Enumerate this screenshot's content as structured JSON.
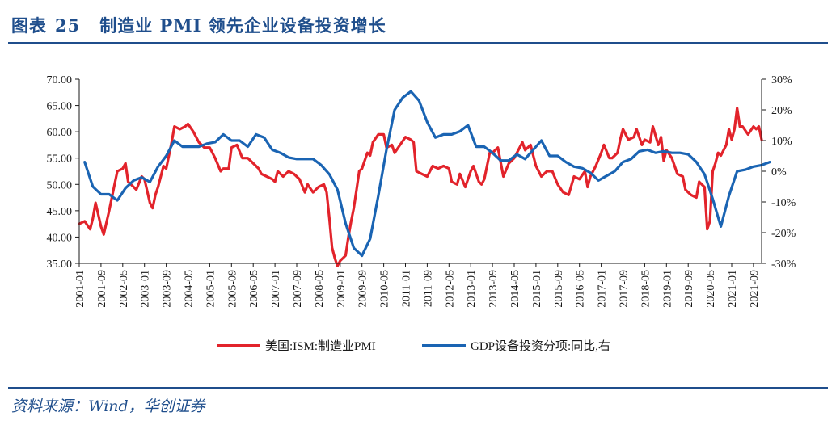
{
  "header": {
    "fig_label": "图表",
    "fig_number": "25",
    "fig_title": "制造业 PMI 领先企业设备投资增长"
  },
  "footer": {
    "source": "资料来源：Wind，华创证券"
  },
  "colors": {
    "pmi": "#e2232b",
    "gdp": "#1a64b3",
    "axis": "#1a1a1a",
    "accent": "#1f4e8c"
  },
  "chart_data": {
    "type": "line",
    "title": "制造业 PMI 领先企业设备投资增长",
    "x_start": "2001-01",
    "x_end": "2021-12",
    "x_tick_labels": [
      "2001-01",
      "2001-09",
      "2002-05",
      "2003-01",
      "2003-09",
      "2004-05",
      "2005-01",
      "2005-09",
      "2006-05",
      "2007-01",
      "2007-09",
      "2008-05",
      "2009-01",
      "2009-09",
      "2010-05",
      "2011-01",
      "2011-09",
      "2012-05",
      "2013-01",
      "2013-09",
      "2014-05",
      "2015-01",
      "2015-09",
      "2016-05",
      "2017-01",
      "2017-09",
      "2018-05",
      "2019-01",
      "2019-09",
      "2020-05",
      "2021-01",
      "2021-09"
    ],
    "y_left": {
      "min": 35,
      "max": 70,
      "step": 5,
      "tick_labels": [
        "35.00",
        "40.00",
        "45.00",
        "50.00",
        "55.00",
        "60.00",
        "65.00",
        "70.00"
      ]
    },
    "y_right": {
      "min": -30,
      "max": 30,
      "step": 10,
      "tick_labels": [
        "-30%",
        "-20%",
        "-10%",
        "0%",
        "10%",
        "20%",
        "30%"
      ]
    },
    "legend_position": "bottom-center",
    "series": [
      {
        "name": "美国:ISM:制造业PMI",
        "axis": "left",
        "points": [
          [
            "2001-01",
            42.5
          ],
          [
            "2001-03",
            43.0
          ],
          [
            "2001-05",
            41.5
          ],
          [
            "2001-06",
            43.5
          ],
          [
            "2001-07",
            46.5
          ],
          [
            "2001-09",
            42.0
          ],
          [
            "2001-10",
            40.5
          ],
          [
            "2001-12",
            45.0
          ],
          [
            "2002-02",
            50.0
          ],
          [
            "2002-03",
            52.5
          ],
          [
            "2002-05",
            53.0
          ],
          [
            "2002-06",
            54.0
          ],
          [
            "2002-07",
            50.5
          ],
          [
            "2002-09",
            49.5
          ],
          [
            "2002-10",
            49.0
          ],
          [
            "2002-12",
            51.5
          ],
          [
            "2003-01",
            51.0
          ],
          [
            "2003-03",
            46.5
          ],
          [
            "2003-04",
            45.5
          ],
          [
            "2003-05",
            48.0
          ],
          [
            "2003-06",
            49.5
          ],
          [
            "2003-08",
            53.5
          ],
          [
            "2003-09",
            53.0
          ],
          [
            "2003-11",
            58.0
          ],
          [
            "2003-12",
            61.0
          ],
          [
            "2004-02",
            60.5
          ],
          [
            "2004-04",
            61.0
          ],
          [
            "2004-05",
            61.5
          ],
          [
            "2004-07",
            60.0
          ],
          [
            "2004-09",
            58.0
          ],
          [
            "2004-11",
            57.0
          ],
          [
            "2005-01",
            57.0
          ],
          [
            "2005-03",
            55.0
          ],
          [
            "2005-05",
            52.5
          ],
          [
            "2005-06",
            53.0
          ],
          [
            "2005-08",
            53.0
          ],
          [
            "2005-09",
            57.0
          ],
          [
            "2005-11",
            57.5
          ],
          [
            "2006-01",
            55.0
          ],
          [
            "2006-03",
            55.0
          ],
          [
            "2006-05",
            54.0
          ],
          [
            "2006-07",
            53.0
          ],
          [
            "2006-08",
            52.0
          ],
          [
            "2006-10",
            51.5
          ],
          [
            "2006-12",
            51.0
          ],
          [
            "2007-01",
            50.5
          ],
          [
            "2007-02",
            52.5
          ],
          [
            "2007-04",
            51.5
          ],
          [
            "2007-06",
            52.5
          ],
          [
            "2007-08",
            52.0
          ],
          [
            "2007-10",
            51.0
          ],
          [
            "2007-12",
            48.5
          ],
          [
            "2008-01",
            50.0
          ],
          [
            "2008-03",
            48.5
          ],
          [
            "2008-05",
            49.5
          ],
          [
            "2008-07",
            50.0
          ],
          [
            "2008-08",
            48.5
          ],
          [
            "2008-09",
            43.5
          ],
          [
            "2008-10",
            38.0
          ],
          [
            "2008-11",
            36.0
          ],
          [
            "2008-12",
            34.5
          ],
          [
            "2009-01",
            35.5
          ],
          [
            "2009-02",
            36.0
          ],
          [
            "2009-03",
            36.5
          ],
          [
            "2009-04",
            40.0
          ],
          [
            "2009-05",
            43.0
          ],
          [
            "2009-06",
            45.5
          ],
          [
            "2009-07",
            49.0
          ],
          [
            "2009-08",
            52.5
          ],
          [
            "2009-09",
            53.0
          ],
          [
            "2009-11",
            56.0
          ],
          [
            "2009-12",
            55.5
          ],
          [
            "2010-01",
            58.0
          ],
          [
            "2010-03",
            59.5
          ],
          [
            "2010-05",
            59.5
          ],
          [
            "2010-06",
            57.0
          ],
          [
            "2010-08",
            57.5
          ],
          [
            "2010-09",
            56.0
          ],
          [
            "2010-11",
            57.5
          ],
          [
            "2011-01",
            59.0
          ],
          [
            "2011-03",
            58.5
          ],
          [
            "2011-04",
            58.0
          ],
          [
            "2011-05",
            52.5
          ],
          [
            "2011-07",
            52.0
          ],
          [
            "2011-09",
            51.5
          ],
          [
            "2011-11",
            53.5
          ],
          [
            "2012-01",
            53.0
          ],
          [
            "2012-03",
            53.5
          ],
          [
            "2012-05",
            53.0
          ],
          [
            "2012-06",
            50.5
          ],
          [
            "2012-08",
            50.0
          ],
          [
            "2012-09",
            52.0
          ],
          [
            "2012-11",
            49.5
          ],
          [
            "2013-01",
            52.5
          ],
          [
            "2013-02",
            53.5
          ],
          [
            "2013-04",
            50.5
          ],
          [
            "2013-05",
            50.0
          ],
          [
            "2013-06",
            51.0
          ],
          [
            "2013-08",
            56.0
          ],
          [
            "2013-09",
            56.0
          ],
          [
            "2013-11",
            57.0
          ],
          [
            "2014-01",
            51.5
          ],
          [
            "2014-03",
            54.0
          ],
          [
            "2014-05",
            55.0
          ],
          [
            "2014-07",
            57.0
          ],
          [
            "2014-08",
            58.0
          ],
          [
            "2014-09",
            56.5
          ],
          [
            "2014-11",
            57.5
          ],
          [
            "2015-01",
            53.5
          ],
          [
            "2015-03",
            51.5
          ],
          [
            "2015-05",
            52.5
          ],
          [
            "2015-07",
            52.5
          ],
          [
            "2015-09",
            50.0
          ],
          [
            "2015-11",
            48.5
          ],
          [
            "2016-01",
            48.0
          ],
          [
            "2016-03",
            51.5
          ],
          [
            "2016-05",
            51.0
          ],
          [
            "2016-07",
            52.5
          ],
          [
            "2016-08",
            49.5
          ],
          [
            "2016-09",
            51.5
          ],
          [
            "2016-11",
            53.5
          ],
          [
            "2017-01",
            56.0
          ],
          [
            "2017-02",
            57.5
          ],
          [
            "2017-04",
            55.0
          ],
          [
            "2017-05",
            55.0
          ],
          [
            "2017-07",
            56.0
          ],
          [
            "2017-08",
            58.5
          ],
          [
            "2017-09",
            60.5
          ],
          [
            "2017-11",
            58.5
          ],
          [
            "2018-01",
            59.0
          ],
          [
            "2018-02",
            60.5
          ],
          [
            "2018-04",
            57.5
          ],
          [
            "2018-05",
            58.5
          ],
          [
            "2018-07",
            58.0
          ],
          [
            "2018-08",
            61.0
          ],
          [
            "2018-10",
            57.5
          ],
          [
            "2018-11",
            59.0
          ],
          [
            "2018-12",
            54.5
          ],
          [
            "2019-01",
            56.5
          ],
          [
            "2019-03",
            55.0
          ],
          [
            "2019-05",
            52.0
          ],
          [
            "2019-07",
            51.5
          ],
          [
            "2019-08",
            49.0
          ],
          [
            "2019-10",
            48.0
          ],
          [
            "2019-12",
            47.5
          ],
          [
            "2020-01",
            50.5
          ],
          [
            "2020-02",
            50.0
          ],
          [
            "2020-03",
            49.5
          ],
          [
            "2020-04",
            41.5
          ],
          [
            "2020-05",
            43.0
          ],
          [
            "2020-06",
            52.5
          ],
          [
            "2020-07",
            54.0
          ],
          [
            "2020-08",
            56.0
          ],
          [
            "2020-09",
            55.5
          ],
          [
            "2020-11",
            57.5
          ],
          [
            "2020-12",
            60.5
          ],
          [
            "2021-01",
            58.5
          ],
          [
            "2021-02",
            60.5
          ],
          [
            "2021-03",
            64.5
          ],
          [
            "2021-04",
            61.0
          ],
          [
            "2021-05",
            61.0
          ],
          [
            "2021-07",
            59.5
          ],
          [
            "2021-09",
            61.0
          ],
          [
            "2021-10",
            60.5
          ],
          [
            "2021-11",
            61.0
          ],
          [
            "2021-12",
            58.5
          ]
        ]
      },
      {
        "name": "GDP设备投资分项:同比,右",
        "axis": "right",
        "points": [
          [
            "2001-03",
            3.0
          ],
          [
            "2001-06",
            -5.0
          ],
          [
            "2001-09",
            -7.5
          ],
          [
            "2001-12",
            -7.5
          ],
          [
            "2002-03",
            -9.5
          ],
          [
            "2002-06",
            -5.5
          ],
          [
            "2002-09",
            -3.0
          ],
          [
            "2002-12",
            -2.0
          ],
          [
            "2003-03",
            -3.5
          ],
          [
            "2003-06",
            1.5
          ],
          [
            "2003-09",
            5.0
          ],
          [
            "2003-12",
            10.0
          ],
          [
            "2004-03",
            8.0
          ],
          [
            "2004-06",
            8.0
          ],
          [
            "2004-09",
            8.0
          ],
          [
            "2004-12",
            9.0
          ],
          [
            "2005-03",
            9.5
          ],
          [
            "2005-06",
            12.0
          ],
          [
            "2005-09",
            10.0
          ],
          [
            "2005-12",
            10.0
          ],
          [
            "2006-03",
            8.0
          ],
          [
            "2006-06",
            12.0
          ],
          [
            "2006-09",
            11.0
          ],
          [
            "2006-12",
            7.0
          ],
          [
            "2007-03",
            6.0
          ],
          [
            "2007-06",
            4.5
          ],
          [
            "2007-09",
            4.0
          ],
          [
            "2007-12",
            4.0
          ],
          [
            "2008-03",
            4.0
          ],
          [
            "2008-06",
            2.0
          ],
          [
            "2008-09",
            -1.0
          ],
          [
            "2008-12",
            -6.0
          ],
          [
            "2009-03",
            -17.0
          ],
          [
            "2009-06",
            -25.0
          ],
          [
            "2009-09",
            -27.5
          ],
          [
            "2009-12",
            -22.0
          ],
          [
            "2010-03",
            -8.0
          ],
          [
            "2010-06",
            7.0
          ],
          [
            "2010-09",
            20.0
          ],
          [
            "2010-12",
            24.0
          ],
          [
            "2011-03",
            26.0
          ],
          [
            "2011-06",
            23.0
          ],
          [
            "2011-09",
            16.0
          ],
          [
            "2011-12",
            11.0
          ],
          [
            "2012-03",
            12.0
          ],
          [
            "2012-06",
            12.0
          ],
          [
            "2012-09",
            13.0
          ],
          [
            "2012-12",
            15.0
          ],
          [
            "2013-03",
            8.0
          ],
          [
            "2013-06",
            8.0
          ],
          [
            "2013-09",
            6.0
          ],
          [
            "2013-12",
            3.5
          ],
          [
            "2014-03",
            3.5
          ],
          [
            "2014-06",
            5.5
          ],
          [
            "2014-09",
            4.0
          ],
          [
            "2014-12",
            7.0
          ],
          [
            "2015-03",
            10.0
          ],
          [
            "2015-06",
            5.0
          ],
          [
            "2015-09",
            5.0
          ],
          [
            "2015-12",
            3.0
          ],
          [
            "2016-03",
            1.5
          ],
          [
            "2016-06",
            1.0
          ],
          [
            "2016-09",
            -0.5
          ],
          [
            "2016-12",
            -3.0
          ],
          [
            "2017-03",
            -1.5
          ],
          [
            "2017-06",
            0.0
          ],
          [
            "2017-09",
            3.0
          ],
          [
            "2017-12",
            4.0
          ],
          [
            "2018-03",
            6.5
          ],
          [
            "2018-06",
            7.0
          ],
          [
            "2018-09",
            6.0
          ],
          [
            "2018-12",
            6.5
          ],
          [
            "2019-03",
            6.0
          ],
          [
            "2019-06",
            6.0
          ],
          [
            "2019-09",
            5.5
          ],
          [
            "2019-12",
            3.0
          ],
          [
            "2020-03",
            -1.0
          ],
          [
            "2020-06",
            -9.0
          ],
          [
            "2020-09",
            -18.0
          ],
          [
            "2020-12",
            -8.0
          ],
          [
            "2021-03",
            0.0
          ],
          [
            "2021-06",
            0.5
          ],
          [
            "2021-09",
            1.5
          ],
          [
            "2021-12",
            2.0
          ],
          [
            "2022-03",
            3.0
          ]
        ]
      }
    ]
  }
}
